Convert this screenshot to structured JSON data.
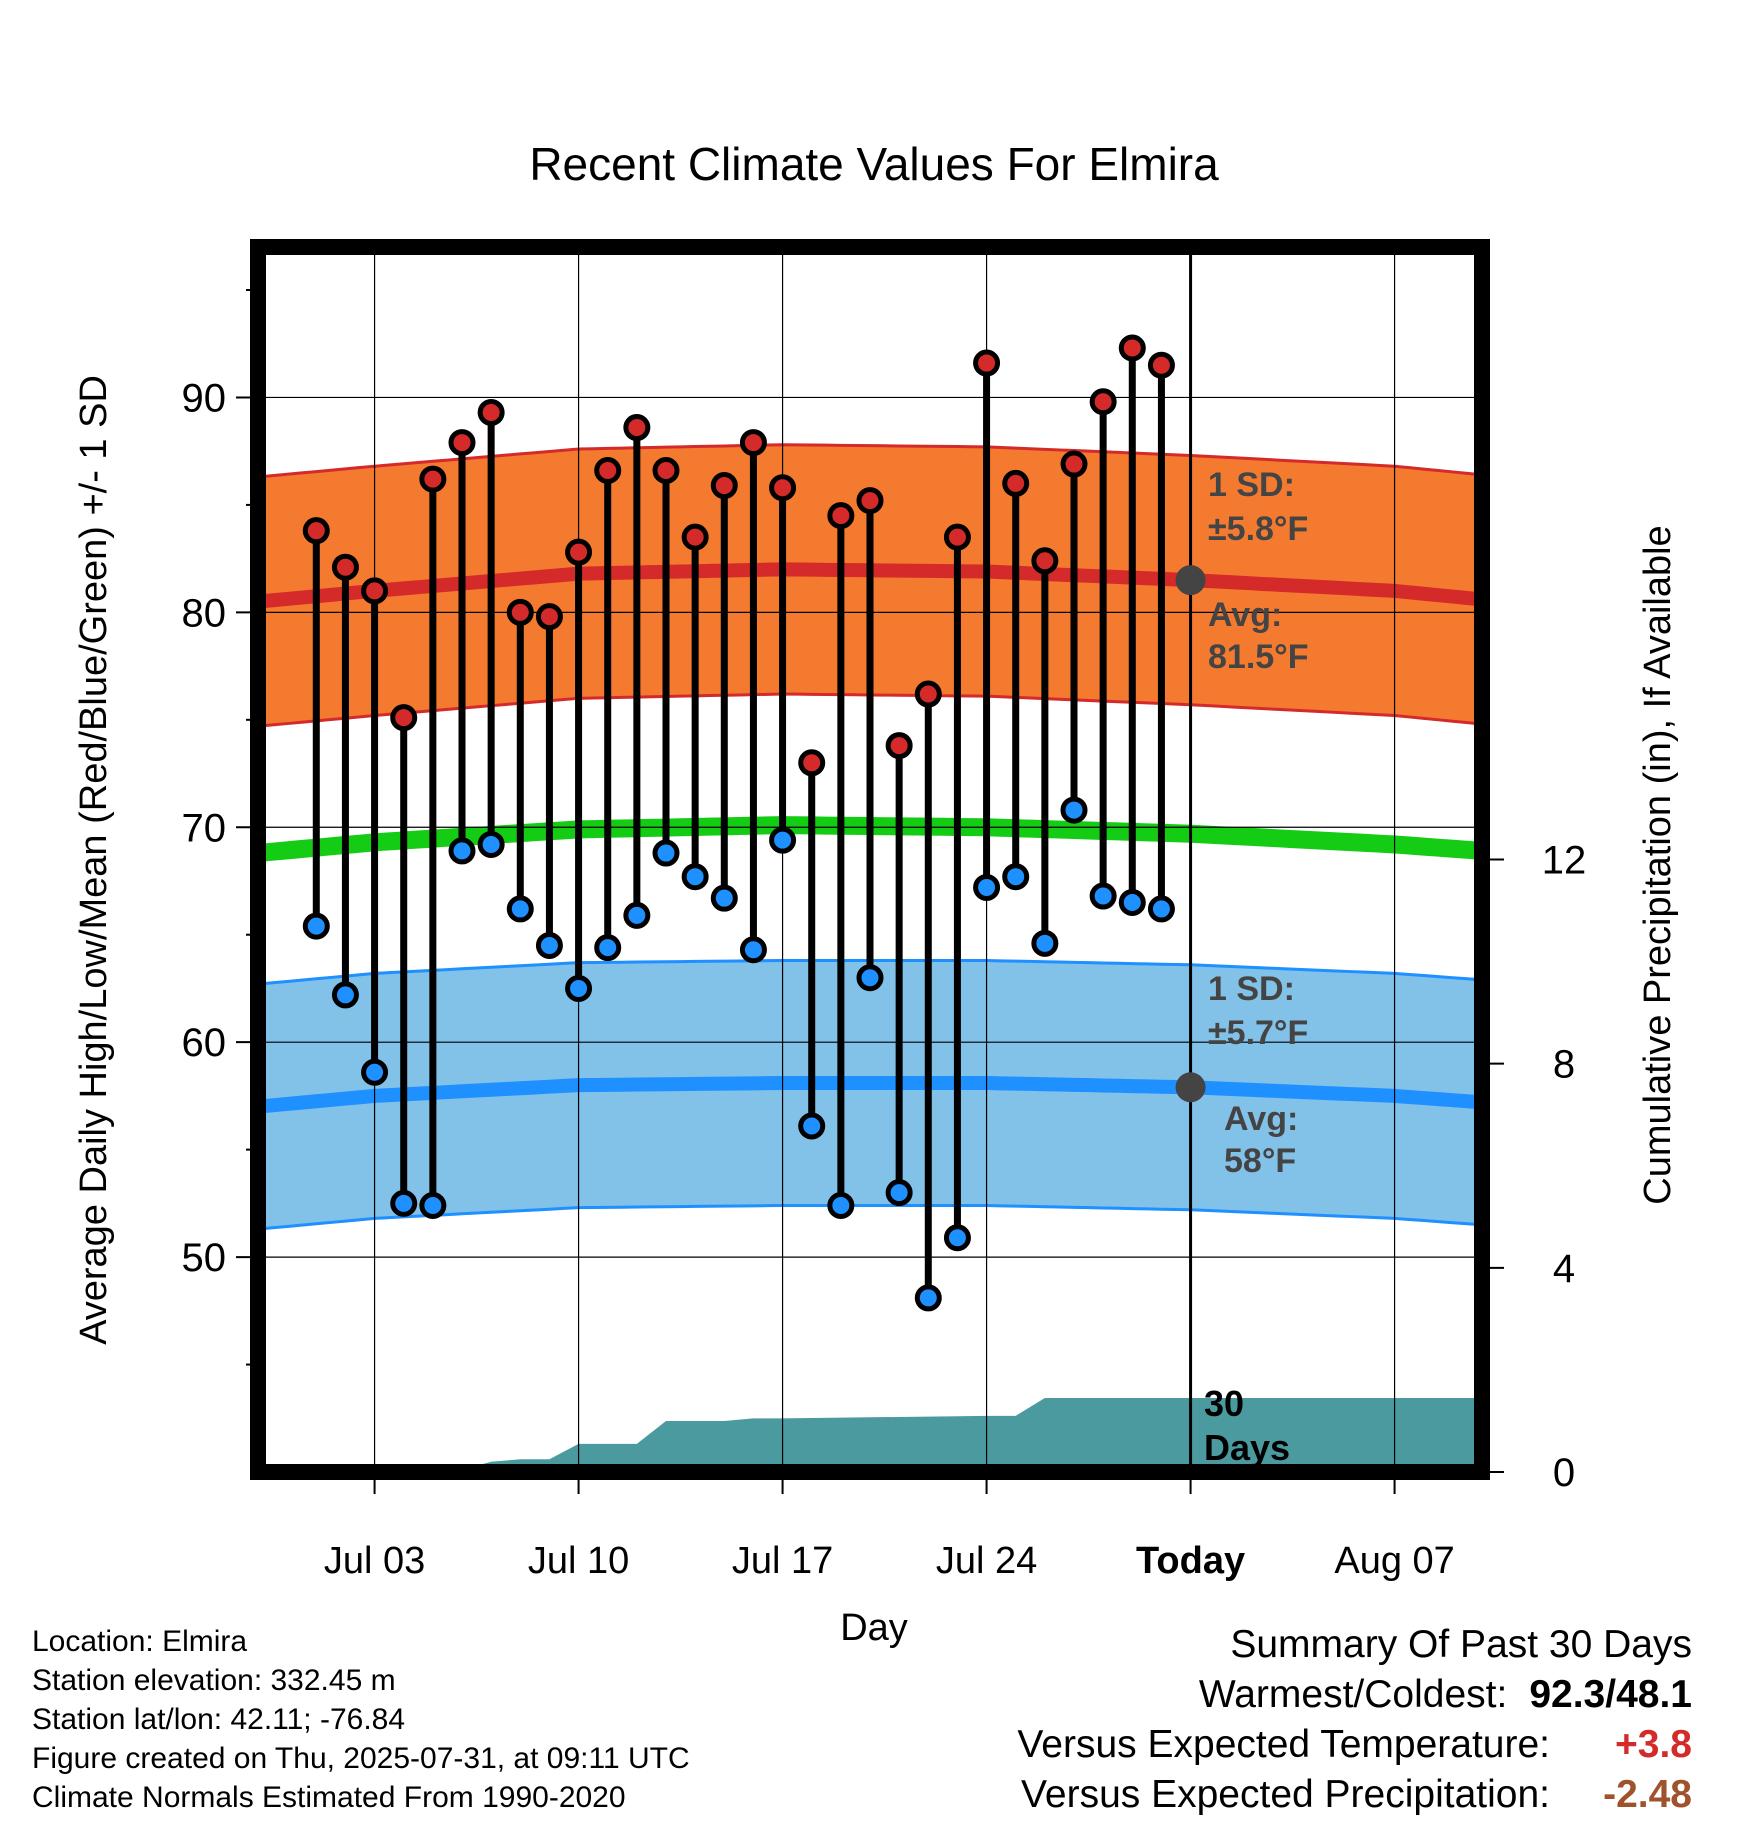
{
  "chart_data": {
    "type": "line",
    "title": "Recent Climate Values For Elmira",
    "xlabel": "Day",
    "ylabel": "Average Daily High/Low/Mean (Red/Blue/Green) +/- 1 SD",
    "y2label": "Cumulative Precipitation (in), If Available",
    "ylim": [
      40,
      97
    ],
    "y2lim": [
      0,
      24
    ],
    "yticks": [
      50,
      60,
      70,
      80,
      90
    ],
    "y2ticks": [
      0,
      4,
      8,
      12
    ],
    "xlim": [
      "Jun 29",
      "Aug 10"
    ],
    "xtick_labels": [
      "Jul 03",
      "Jul 10",
      "Jul 17",
      "Jul 24",
      "Today",
      "Aug 07"
    ],
    "xtick_dates": [
      "Jul 03",
      "Jul 10",
      "Jul 17",
      "Jul 24",
      "Jul 31",
      "Aug 07"
    ],
    "today": "Jul 31",
    "grid": true,
    "days": [
      "Jul 01",
      "Jul 02",
      "Jul 03",
      "Jul 04",
      "Jul 05",
      "Jul 06",
      "Jul 07",
      "Jul 08",
      "Jul 09",
      "Jul 10",
      "Jul 11",
      "Jul 12",
      "Jul 13",
      "Jul 14",
      "Jul 15",
      "Jul 16",
      "Jul 17",
      "Jul 18",
      "Jul 19",
      "Jul 20",
      "Jul 21",
      "Jul 22",
      "Jul 23",
      "Jul 24",
      "Jul 25",
      "Jul 26",
      "Jul 27",
      "Jul 28",
      "Jul 29",
      "Jul 30"
    ],
    "series": [
      {
        "name": "High",
        "color": "#d42a2a",
        "values": [
          83.8,
          82.1,
          81.0,
          75.1,
          86.2,
          87.9,
          89.3,
          80.0,
          79.8,
          82.8,
          86.6,
          88.6,
          86.6,
          83.5,
          85.9,
          87.9,
          85.8,
          73.0,
          84.5,
          85.2,
          73.8,
          76.2,
          83.5,
          91.6,
          86.0,
          82.4,
          86.9,
          89.8,
          92.3,
          91.5
        ]
      },
      {
        "name": "Low",
        "color": "#1e90ff",
        "values": [
          65.4,
          62.2,
          58.6,
          52.5,
          52.4,
          68.9,
          69.2,
          66.2,
          64.5,
          62.5,
          64.4,
          65.9,
          68.8,
          67.7,
          66.7,
          64.3,
          69.4,
          56.1,
          52.4,
          63.0,
          53.0,
          48.1,
          50.9,
          67.2,
          67.7,
          64.6,
          70.8,
          66.8,
          66.5,
          66.2
        ]
      }
    ],
    "normals": {
      "dates": [
        "Jun 29",
        "Jul 03",
        "Jul 10",
        "Jul 17",
        "Jul 24",
        "Jul 31",
        "Aug 07",
        "Aug 10"
      ],
      "high_avg": [
        80.5,
        81.0,
        81.8,
        82.0,
        81.9,
        81.5,
        81.0,
        80.6
      ],
      "high_sd": 5.8,
      "low_avg": [
        57.0,
        57.5,
        58.0,
        58.1,
        58.1,
        57.9,
        57.5,
        57.2
      ],
      "low_sd": 5.7,
      "mean_avg": [
        68.8,
        69.3,
        69.9,
        70.1,
        70.0,
        69.7,
        69.2,
        68.9
      ]
    },
    "precip": {
      "x": [
        "Jun 29",
        "Jul 04",
        "Jul 05",
        "Jul 06",
        "Jul 07",
        "Jul 08",
        "Jul 09",
        "Jul 10",
        "Jul 11",
        "Jul 12",
        "Jul 13",
        "Jul 14",
        "Jul 15",
        "Jul 16",
        "Jul 17",
        "Jul 24",
        "Jul 25",
        "Jul 26",
        "Aug 10"
      ],
      "values": [
        0,
        0,
        0,
        0.05,
        0.2,
        0.25,
        0.25,
        0.55,
        0.55,
        0.55,
        1.0,
        1.0,
        1.0,
        1.05,
        1.05,
        1.1,
        1.1,
        1.45,
        1.45
      ],
      "color": "#4a9aa0"
    },
    "annotations": {
      "high_sd": "1 SD:",
      "high_sd_val": "±5.8°F",
      "high_avg": "Avg:",
      "high_avg_val": "81.5°F",
      "low_sd": "1 SD:",
      "low_sd_val": "±5.7°F",
      "low_avg": "Avg:",
      "low_avg_val": "58°F",
      "days_top": "30",
      "days_bottom": "Days"
    }
  },
  "info": {
    "location": "Location: Elmira",
    "elevation": "Station elevation: 332.45 m",
    "latlon": "Station lat/lon: 42.11; -76.84",
    "created": "Figure created on Thu, 2025-07-31, at 09:11 UTC",
    "normals": "Climate Normals Estimated From 1990-2020"
  },
  "summary": {
    "title": "Summary Of Past 30 Days",
    "warm_label": "Warmest/Coldest:",
    "warm_value": "92.3/48.1",
    "temp_label": "Versus Expected Temperature:",
    "temp_value": "+3.8",
    "temp_color": "#d42a2a",
    "precip_label": "Versus Expected Precipitation:",
    "precip_value": "-2.48",
    "precip_color": "#a0522d"
  }
}
